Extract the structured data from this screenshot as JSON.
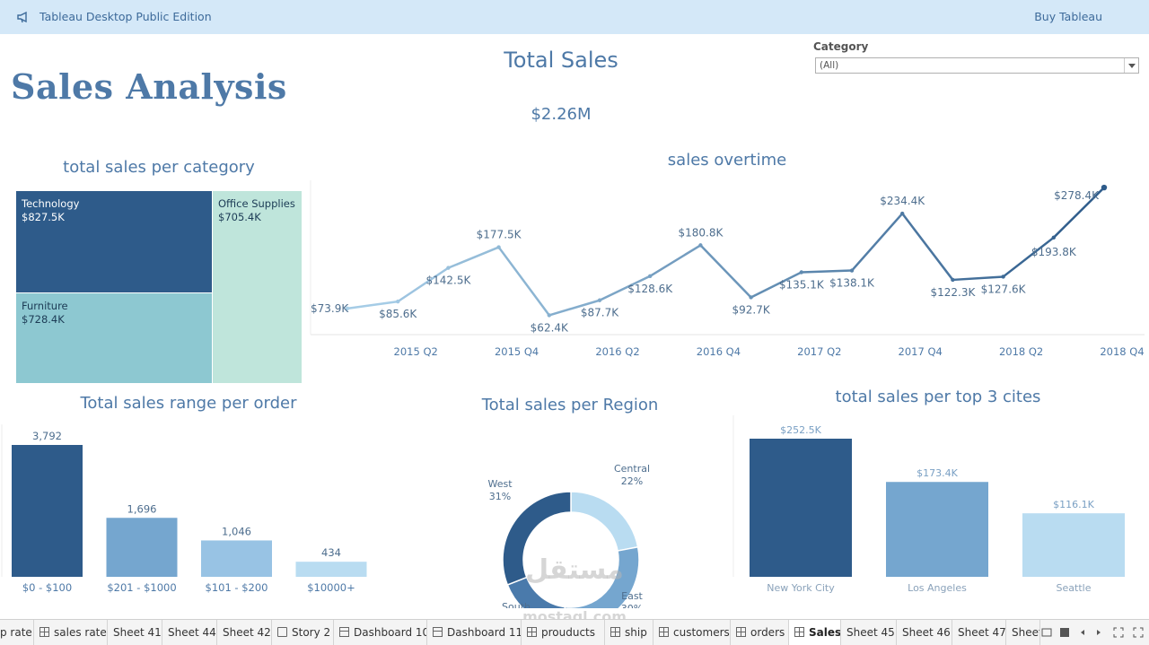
{
  "app": {
    "title": "Tableau Desktop Public Edition",
    "buy_label": "Buy Tableau",
    "icon": "megaphone-icon"
  },
  "dashboard": {
    "title": "Sales Analysis",
    "kpi": {
      "title": "Total Sales",
      "value": "$2.26M"
    },
    "filter": {
      "label": "Category",
      "value": "(All)"
    }
  },
  "treemap": {
    "title": "total sales per category",
    "items": [
      {
        "label": "Technology",
        "value": "$827.5K",
        "color": "#2e5b8a",
        "text_color": "#ffffff"
      },
      {
        "label": "Furniture",
        "value": "$728.4K",
        "color": "#8dc8d1",
        "text_color": "#1c3b55"
      },
      {
        "label": "Office Supplies",
        "value": "$705.4K",
        "color": "#bfe5db",
        "text_color": "#1c3b55"
      }
    ]
  },
  "chart_data": [
    {
      "id": "sales-overtime",
      "type": "line",
      "title": "sales overtime",
      "x": [
        "2015 Q1",
        "2015 Q2",
        "2015 Q3",
        "2015 Q4",
        "2016 Q1",
        "2016 Q2",
        "2016 Q3",
        "2016 Q4",
        "2017 Q1",
        "2017 Q2",
        "2017 Q3",
        "2017 Q4",
        "2018 Q1",
        "2018 Q2",
        "2018 Q3",
        "2018 Q4"
      ],
      "values": [
        73.9,
        85.6,
        142.5,
        177.5,
        62.4,
        87.7,
        128.6,
        180.8,
        92.7,
        135.1,
        138.1,
        234.4,
        122.3,
        127.6,
        193.8,
        278.4
      ],
      "labels": [
        "$73.9K",
        "$85.6K",
        "$142.5K",
        "$177.5K",
        "$62.4K",
        "$87.7K",
        "$128.6K",
        "$180.8K",
        "$92.7K",
        "$135.1K",
        "$138.1K",
        "$234.4K",
        "$122.3K",
        "$127.6K",
        "$193.8K",
        "$278.4K"
      ],
      "ticks": [
        "2015 Q2",
        "2015 Q4",
        "2016 Q2",
        "2016 Q4",
        "2017 Q2",
        "2017 Q4",
        "2018 Q2",
        "2018 Q4"
      ],
      "color_low": "#a9d0e9",
      "color_high": "#2e5b8a"
    },
    {
      "id": "sales-range",
      "type": "bar",
      "title": "Total sales range per order",
      "categories": [
        "$0 - $100",
        "$201 - $1000",
        "$101 - $200",
        "$10000+"
      ],
      "values": [
        3792,
        1696,
        1046,
        434
      ],
      "labels": [
        "3,792",
        "1,696",
        "1,046",
        "434"
      ],
      "colors": [
        "#2e5b8a",
        "#75a6cf",
        "#98c3e4",
        "#b9dcf1"
      ]
    },
    {
      "id": "sales-region",
      "type": "pie",
      "title": "Total sales per Region",
      "slices": [
        {
          "name": "Central",
          "pct": "22%",
          "value": 22,
          "color": "#b9dcf1"
        },
        {
          "name": "East",
          "pct": "30%",
          "value": 30,
          "color": "#75a6cf"
        },
        {
          "name": "South",
          "pct": "17%",
          "value": 17,
          "color": "#4a7aab"
        },
        {
          "name": "West",
          "pct": "31%",
          "value": 31,
          "color": "#2e5b8a"
        }
      ]
    },
    {
      "id": "sales-cities",
      "type": "bar",
      "title": "total sales per top 3 cites",
      "categories": [
        "New York City",
        "Los Angeles",
        "Seattle"
      ],
      "values": [
        252.5,
        173.4,
        116.1
      ],
      "labels": [
        "$252.5K",
        "$173.4K",
        "$116.1K"
      ],
      "colors": [
        "#2e5b8a",
        "#75a6cf",
        "#b9dcf1"
      ]
    }
  ],
  "tabs": [
    {
      "label": "p rate",
      "icon": "",
      "active": false
    },
    {
      "label": "sales rate",
      "icon": "grid",
      "active": false
    },
    {
      "label": "Sheet 41",
      "icon": "",
      "active": false
    },
    {
      "label": "Sheet 44",
      "icon": "",
      "active": false
    },
    {
      "label": "Sheet 42",
      "icon": "",
      "active": false
    },
    {
      "label": "Story 2",
      "icon": "book",
      "active": false
    },
    {
      "label": "Dashboard 10",
      "icon": "board",
      "active": false
    },
    {
      "label": "Dashboard 11",
      "icon": "board",
      "active": false
    },
    {
      "label": "prouducts",
      "icon": "grid",
      "active": false
    },
    {
      "label": "ship",
      "icon": "grid",
      "active": false
    },
    {
      "label": "customers",
      "icon": "grid",
      "active": false
    },
    {
      "label": "orders",
      "icon": "grid",
      "active": false
    },
    {
      "label": "Sales",
      "icon": "grid",
      "active": true
    },
    {
      "label": "Sheet 45",
      "icon": "",
      "active": false
    },
    {
      "label": "Sheet 46",
      "icon": "",
      "active": false
    },
    {
      "label": "Sheet 47",
      "icon": "",
      "active": false
    },
    {
      "label": "Sheet",
      "icon": "",
      "active": false
    }
  ],
  "watermark": {
    "arabic": "مستقل",
    "latin": "mostaql.com"
  }
}
